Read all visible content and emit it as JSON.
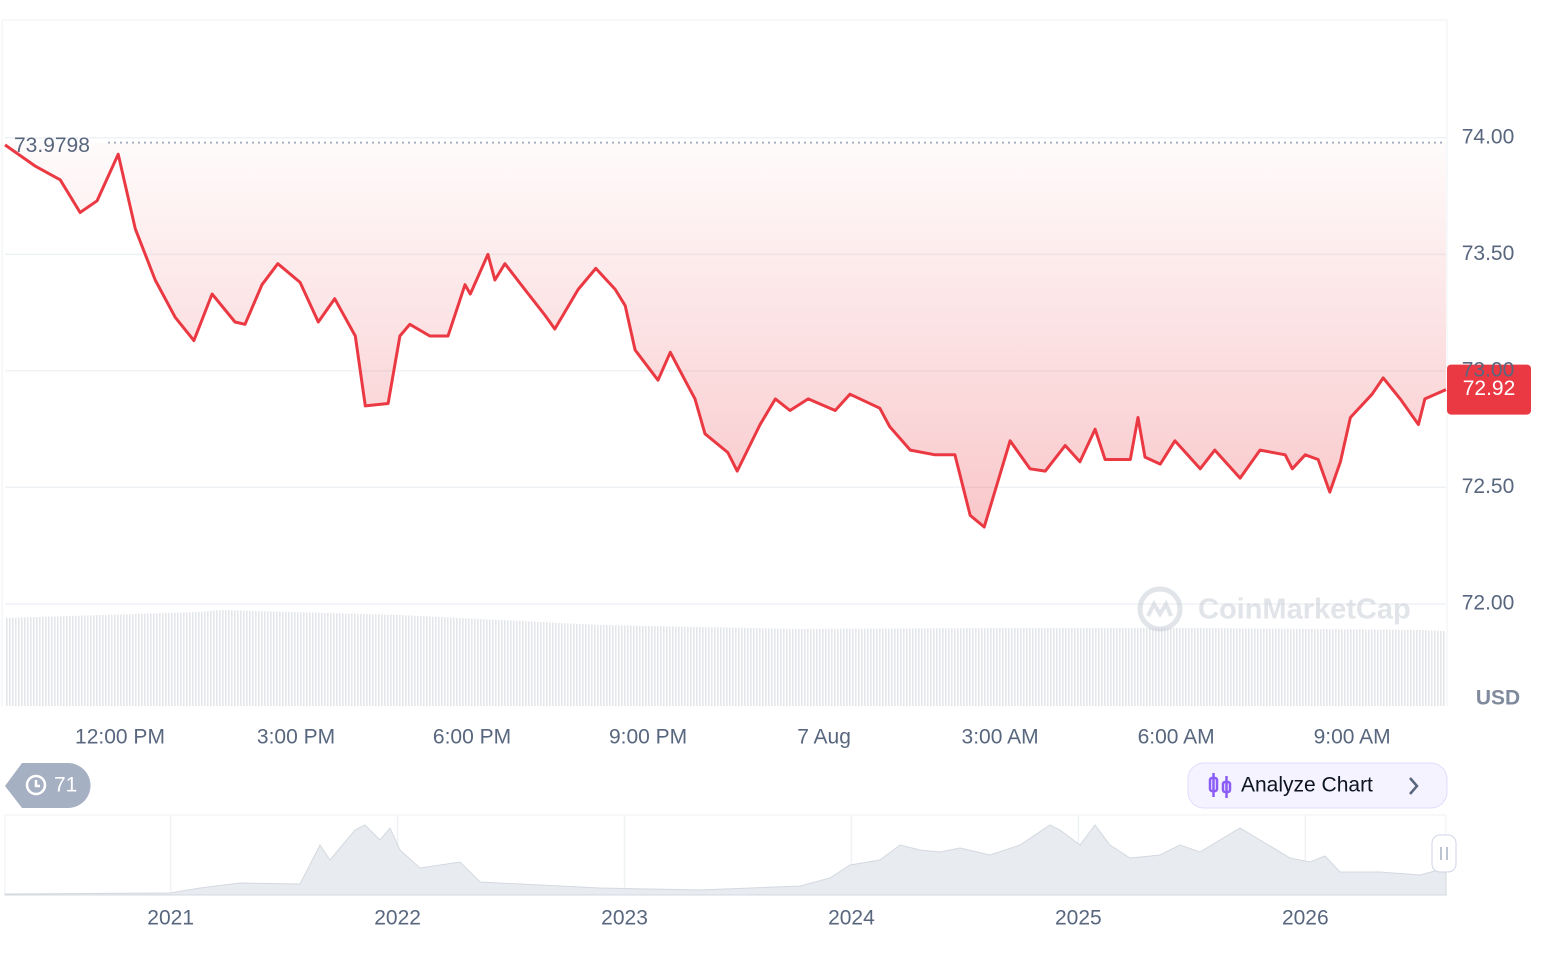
{
  "chart_data": {
    "type": "line",
    "color": "#ea3943",
    "x": [
      10.04,
      10.55,
      10.98,
      11.32,
      11.61,
      11.97,
      12.26,
      12.6,
      12.94,
      13.26,
      13.57,
      13.96,
      14.13,
      14.42,
      14.69,
      15.07,
      15.38,
      15.66,
      16.01,
      16.18,
      16.57,
      16.77,
      16.94,
      17.28,
      17.59,
      17.88,
      17.97,
      18.27,
      18.39,
      18.56,
      18.9,
      19.24,
      19.41,
      19.81,
      20.11,
      20.44,
      20.61,
      20.78,
      21.17,
      21.38,
      21.63,
      21.8,
      21.97,
      22.36,
      22.52,
      22.91,
      23.17,
      23.42,
      23.73,
      24.19,
      24.44,
      24.95,
      25.12,
      25.47,
      25.89,
      26.23,
      26.49,
      26.73,
      27.17,
      27.51,
      27.77,
      28.11,
      28.36,
      28.62,
      28.79,
      29.22,
      29.35,
      29.47,
      29.73,
      29.98,
      30.41,
      30.66,
      31.09,
      31.43,
      31.86,
      31.98,
      32.2,
      32.42,
      32.62,
      32.8,
      32.97,
      33.34,
      33.53,
      33.82,
      34.13,
      34.24,
      34.6
    ],
    "values": [
      73.97,
      73.88,
      73.82,
      73.68,
      73.73,
      73.93,
      73.61,
      73.39,
      73.23,
      73.13,
      73.33,
      73.21,
      73.2,
      73.37,
      73.46,
      73.38,
      73.21,
      73.31,
      73.15,
      72.85,
      72.86,
      73.15,
      73.2,
      73.15,
      73.15,
      73.37,
      73.33,
      73.5,
      73.39,
      73.46,
      73.35,
      73.24,
      73.18,
      73.35,
      73.44,
      73.35,
      73.28,
      73.09,
      72.96,
      73.08,
      72.96,
      72.88,
      72.73,
      72.65,
      72.57,
      72.77,
      72.88,
      72.83,
      72.88,
      72.83,
      72.9,
      72.84,
      72.76,
      72.66,
      72.64,
      72.64,
      72.38,
      72.33,
      72.7,
      72.58,
      72.57,
      72.68,
      72.61,
      72.75,
      72.62,
      72.62,
      72.8,
      72.63,
      72.6,
      72.7,
      72.58,
      72.66,
      72.54,
      72.66,
      72.64,
      72.58,
      72.64,
      72.62,
      72.48,
      72.61,
      72.8,
      72.9,
      72.97,
      72.88,
      72.77,
      72.88,
      72.92
    ],
    "xlim": [
      10.04,
      34.6
    ],
    "xticks": [
      {
        "value": 12,
        "label": "12:00 PM"
      },
      {
        "value": 15,
        "label": "3:00 PM"
      },
      {
        "value": 18,
        "label": "6:00 PM"
      },
      {
        "value": 21,
        "label": "9:00 PM"
      },
      {
        "value": 24,
        "label": "7 Aug"
      },
      {
        "value": 27,
        "label": "3:00 AM"
      },
      {
        "value": 30,
        "label": "6:00 AM"
      },
      {
        "value": 33,
        "label": "9:00 AM"
      }
    ],
    "ylim": [
      71.562,
      74.506
    ],
    "yticks": [
      {
        "value": 72,
        "label": "72.00"
      },
      {
        "value": 72.5,
        "label": "72.50"
      },
      {
        "value": 73,
        "label": "73.00"
      },
      {
        "value": 73.5,
        "label": "73.50"
      },
      {
        "value": 74,
        "label": "74.00"
      }
    ],
    "grid": true,
    "reference_value": 73.9798,
    "current_price": 72.92,
    "unit": "USD"
  },
  "navigator": {
    "xlim": [
      2020.27,
      2026.62
    ],
    "xticks": [
      2021,
      2022,
      2023,
      2024,
      2025,
      2026
    ]
  },
  "ui": {
    "history_count": 71,
    "analyze_button": "Analyze Chart",
    "watermark": "CoinMarketCap"
  }
}
